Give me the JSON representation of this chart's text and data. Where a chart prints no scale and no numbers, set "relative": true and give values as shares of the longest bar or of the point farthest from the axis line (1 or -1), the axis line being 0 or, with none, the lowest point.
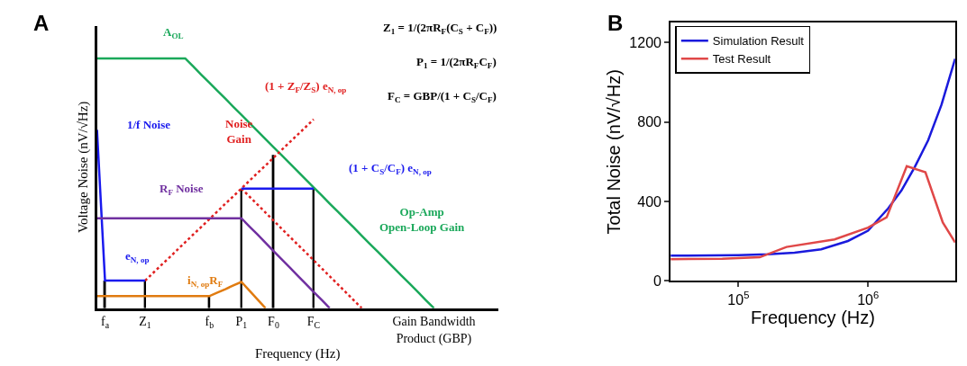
{
  "chart_data": [
    {
      "type": "line",
      "title": "A",
      "relative": true,
      "xlabel": "Frequency (Hz)",
      "ylabel": "Voltage Noise (nV/√Hz)",
      "categories": [
        null,
        "f$_{a}$",
        null,
        null,
        null,
        null,
        "Z$_{1}$",
        null,
        null,
        null,
        null,
        null,
        null,
        null,
        "f$_{b}$",
        null,
        null,
        null,
        "P$_{1}$",
        null,
        null,
        null,
        "F$_{0}$",
        null,
        null,
        null,
        null,
        "F$_{C}$",
        null,
        null,
        null,
        null,
        null,
        null,
        null,
        null,
        null,
        null,
        null,
        null,
        null,
        null,
        "Gain Bandwidth\nProduct (GBP)",
        null,
        null,
        null,
        null,
        null,
        null,
        null,
        null
      ],
      "series": [
        {
          "color": "#1aa85a",
          "values": [
            1,
            1,
            1,
            1,
            1,
            1,
            1,
            1,
            1,
            1,
            1,
            1,
            0.968,
            0.935,
            0.903,
            0.871,
            0.839,
            0.806,
            0.774,
            0.742,
            0.71,
            0.677,
            0.645,
            0.613,
            0.581,
            0.548,
            0.516,
            0.484,
            0.452,
            0.419,
            0.387,
            0.355,
            0.323,
            0.29,
            0.258,
            0.226,
            0.194,
            0.161,
            0.129,
            0.097,
            0.065,
            0.032,
            0,
            null,
            null,
            null,
            null,
            null,
            null,
            null,
            null
          ]
        },
        {
          "color": "#e02020",
          "line_style": "dotted",
          "values": [
            null,
            null,
            null,
            null,
            null,
            null,
            0.11,
            0.141,
            0.172,
            0.202,
            0.233,
            0.264,
            0.295,
            0.325,
            0.356,
            0.387,
            0.418,
            0.448,
            0.479,
            0.51,
            0.541,
            0.571,
            0.602,
            0.633,
            0.664,
            0.694,
            0.725,
            0.756,
            null,
            null,
            null,
            null,
            null,
            null,
            null,
            null,
            null,
            null,
            null,
            null,
            null,
            null,
            null,
            null,
            null,
            null,
            null,
            null,
            null,
            null,
            null
          ]
        },
        {
          "color": "#e02020",
          "line_style": "dotted",
          "values": [
            null,
            null,
            null,
            null,
            null,
            null,
            null,
            null,
            null,
            null,
            null,
            null,
            null,
            null,
            null,
            null,
            null,
            null,
            0.479,
            0.447,
            0.415,
            0.383,
            0.351,
            0.319,
            0.287,
            0.255,
            0.224,
            0.192,
            0.16,
            0.128,
            0.096,
            0.064,
            0.032,
            0,
            null,
            null,
            null,
            null,
            null,
            null,
            null,
            null,
            null,
            null,
            null,
            null,
            null,
            null,
            null,
            null,
            null
          ]
        },
        {
          "color": "#1a1aee",
          "values": [
            0.714,
            0.11,
            0.11,
            0.11,
            0.11,
            0.11,
            0.11,
            null,
            null,
            null,
            null,
            null,
            null,
            null,
            null,
            null,
            null,
            null,
            null,
            null,
            null,
            null,
            null,
            null,
            null,
            null,
            null,
            null,
            null,
            null,
            null,
            null,
            null,
            null,
            null,
            null,
            null,
            null,
            null,
            null,
            null,
            null,
            null,
            null,
            null,
            null,
            null,
            null,
            null,
            null,
            null
          ]
        },
        {
          "color": "#1a1aee",
          "values": [
            null,
            null,
            null,
            null,
            null,
            null,
            null,
            null,
            null,
            null,
            null,
            null,
            null,
            null,
            null,
            null,
            null,
            null,
            0.479,
            0.479,
            0.479,
            0.479,
            0.479,
            0.479,
            0.479,
            0.479,
            0.479,
            0.479,
            null,
            null,
            null,
            null,
            null,
            null,
            null,
            null,
            null,
            null,
            null,
            null,
            null,
            null,
            null,
            null,
            null,
            null,
            null,
            null,
            null,
            null,
            null
          ]
        },
        {
          "color": "#7030a0",
          "values": [
            0.36,
            0.36,
            0.36,
            0.36,
            0.36,
            0.36,
            0.36,
            0.36,
            0.36,
            0.36,
            0.36,
            0.36,
            0.36,
            0.36,
            0.36,
            0.36,
            0.36,
            0.36,
            0.36,
            0.327,
            0.295,
            0.262,
            0.229,
            0.196,
            0.164,
            0.131,
            0.098,
            0.065,
            0.033,
            0,
            null,
            null,
            null,
            null,
            null,
            null,
            null,
            null,
            null,
            null,
            null,
            null,
            null,
            null,
            null,
            null,
            null,
            null,
            null,
            null,
            null
          ]
        },
        {
          "color": "#e07b10",
          "values": [
            0.048,
            0.048,
            0.048,
            0.048,
            0.048,
            0.048,
            0.048,
            0.048,
            0.048,
            0.048,
            0.048,
            0.048,
            0.048,
            0.048,
            0.048,
            0.062,
            0.076,
            0.091,
            0.105,
            0.07,
            0.035,
            0,
            null,
            null,
            null,
            null,
            null,
            null,
            null,
            null,
            null,
            null,
            null,
            null,
            null,
            null,
            null,
            null,
            null,
            null,
            null,
            null,
            null,
            null,
            null,
            null,
            null,
            null,
            null,
            null,
            null
          ]
        },
        {
          "type": "bar",
          "color": "#000000",
          "values": [
            null,
            0.11,
            null,
            null,
            null,
            null,
            0.11,
            null,
            null,
            null,
            null,
            null,
            null,
            null,
            0.048,
            null,
            null,
            null,
            0.479,
            null,
            null,
            null,
            0.614,
            null,
            null,
            null,
            null,
            0.479,
            null,
            null,
            null,
            null,
            null,
            null,
            null,
            null,
            null,
            null,
            null,
            null,
            null,
            null,
            null,
            null,
            null,
            null,
            null,
            null,
            null,
            null,
            null
          ]
        }
      ],
      "annotations": [
        "A$_{OL}$",
        "(1 + Z$_{F}$/Z$_{S}$) e$_{N, op}$",
        "Noise\nGain",
        "1/f Noise",
        "(1 + C$_{S}$/C$_{F}$) e$_{N, op}$",
        "R$_{F}$ Noise",
        "e$_{N, op}$",
        "i$_{N, op}$R$_{F}$",
        "Op-Amp\nOpen-Loop Gain",
        "Z$_{1}$ = 1/(2πR$_{F}$(C$_{S}$ + C$_{F}$))",
        "P$_{1}$ = 1/(2πR$_{F}$C$_{F}$)",
        "F$_{C}$ = GBP/(1 + C$_{S}$/C$_{F}$)"
      ]
    },
    {
      "type": "line",
      "title": "B",
      "xlabel": "Frequency (Hz)",
      "ylabel": "Total Noise (nV/√Hz)",
      "log": "x",
      "legend": "top left",
      "xlim": [
        30000,
        4700000
      ],
      "xticks": [
        {
          "value": 100000,
          "label": "10$^{5}$"
        },
        {
          "value": 1000000,
          "label": "10$^{6}$"
        }
      ],
      "ylim": [
        0,
        1300
      ],
      "yticks": [
        0,
        400,
        800,
        1200
      ],
      "series": [
        {
          "name": "Simulation Result",
          "color": "#1a1adc",
          "x": [
            30000,
            100000,
            168700,
            271000,
            435000,
            700000,
            1000000,
            1430000,
            1811000,
            2297000,
            2911000,
            3690000,
            4700000
          ],
          "values": [
            127,
            130,
            134,
            142,
            159,
            201,
            253,
            365,
            455,
            574,
            708,
            887,
            1118
          ]
        },
        {
          "name": "Test Result",
          "color": "#e04848",
          "x": [
            30000,
            75100,
            146000,
            235000,
            552000,
            1000000,
            1393000,
            1990000,
            2773000,
            3776000,
            4700000
          ],
          "values": [
            109,
            112,
            119,
            171,
            209,
            268,
            320,
            577,
            547,
            294,
            194
          ]
        }
      ]
    }
  ]
}
